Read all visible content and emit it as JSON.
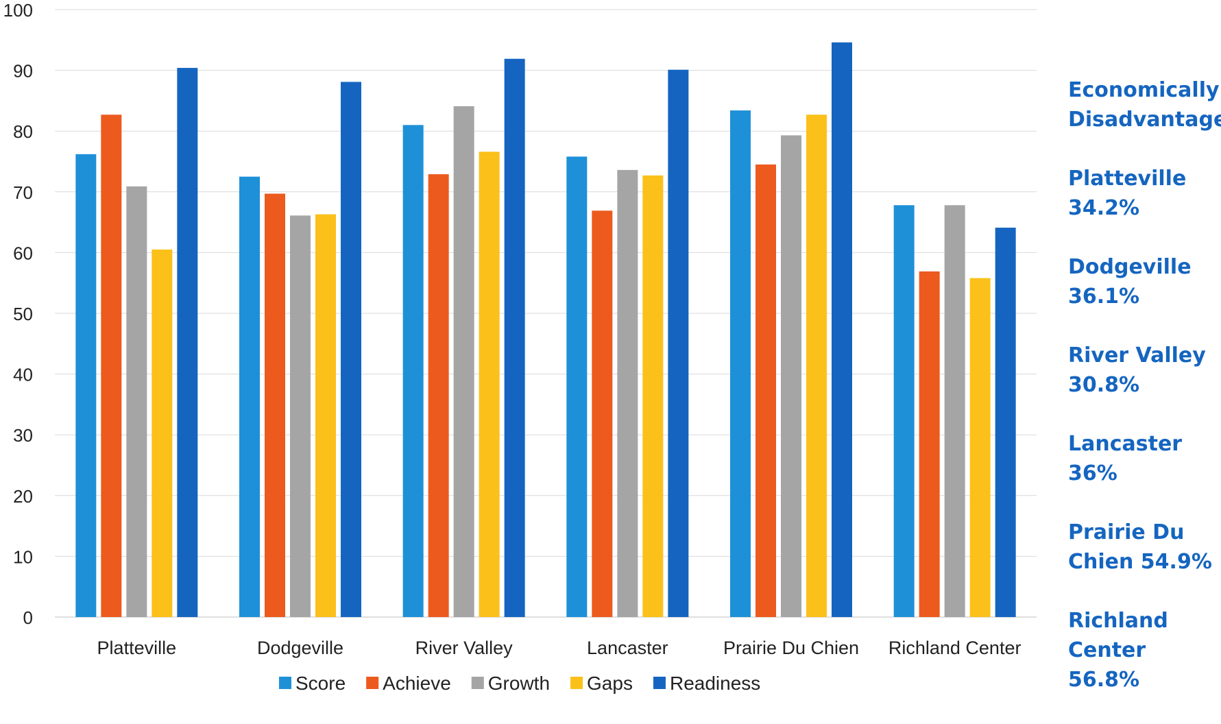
{
  "chart_data": {
    "type": "bar",
    "categories": [
      "Platteville",
      "Dodgeville",
      "River Valley",
      "Lancaster",
      "Prairie Du Chien",
      "Richland Center"
    ],
    "series": [
      {
        "name": "Score",
        "color": "#1e90d8",
        "values": [
          76.2,
          72.5,
          81.0,
          75.8,
          83.4,
          67.8
        ]
      },
      {
        "name": "Achieve",
        "color": "#ec5a1e",
        "values": [
          82.7,
          69.7,
          72.9,
          66.9,
          74.5,
          56.9
        ]
      },
      {
        "name": "Growth",
        "color": "#a5a5a5",
        "values": [
          70.9,
          66.1,
          84.1,
          73.6,
          79.3,
          67.8
        ]
      },
      {
        "name": "Gaps",
        "color": "#fbc11a",
        "values": [
          60.5,
          66.3,
          76.6,
          72.7,
          82.7,
          55.8
        ]
      },
      {
        "name": "Readiness",
        "color": "#1565c0",
        "values": [
          90.4,
          88.1,
          91.9,
          90.1,
          94.6,
          64.1
        ]
      }
    ],
    "ylim": [
      0,
      100
    ],
    "yticks": [
      0,
      10,
      20,
      30,
      40,
      50,
      60,
      70,
      80,
      90,
      100
    ],
    "grid": true,
    "legend_position": "bottom"
  },
  "annotations": {
    "header": [
      "Economically",
      "Disadvantaged"
    ],
    "items": [
      [
        "Platteville",
        "34.2%"
      ],
      [
        "Dodgeville",
        "36.1%"
      ],
      [
        "River Valley",
        "30.8%"
      ],
      [
        "Lancaster 36%"
      ],
      [
        "Prairie Du",
        "Chien 54.9%"
      ],
      [
        "Richland",
        "Center 56.8%"
      ]
    ]
  }
}
